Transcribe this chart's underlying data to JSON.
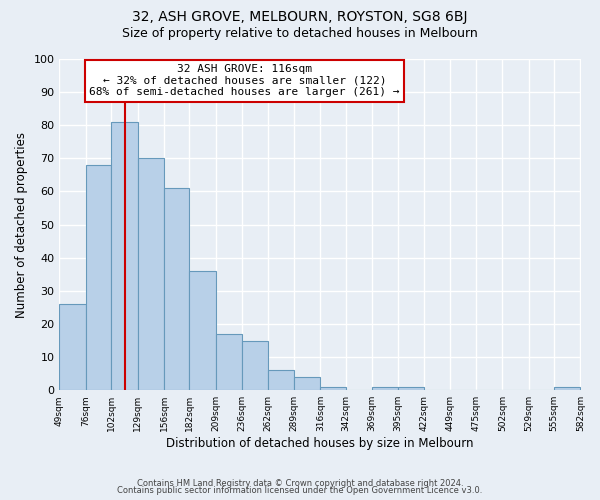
{
  "title": "32, ASH GROVE, MELBOURN, ROYSTON, SG8 6BJ",
  "subtitle": "Size of property relative to detached houses in Melbourn",
  "xlabel": "Distribution of detached houses by size in Melbourn",
  "ylabel": "Number of detached properties",
  "bin_edges": [
    49,
    76,
    102,
    129,
    156,
    182,
    209,
    236,
    262,
    289,
    316,
    342,
    369,
    395,
    422,
    449,
    475,
    502,
    529,
    555,
    582
  ],
  "bin_counts": [
    26,
    68,
    81,
    70,
    61,
    36,
    17,
    15,
    6,
    4,
    1,
    0,
    1,
    1,
    0,
    0,
    0,
    0,
    0,
    1
  ],
  "bar_color": "#b8d0e8",
  "bar_edge_color": "#6699bb",
  "reference_line_x": 116,
  "reference_line_color": "#cc0000",
  "annotation_text": "32 ASH GROVE: 116sqm\n← 32% of detached houses are smaller (122)\n68% of semi-detached houses are larger (261) →",
  "annotation_box_facecolor": "#ffffff",
  "annotation_box_edgecolor": "#cc0000",
  "ylim": [
    0,
    100
  ],
  "background_color": "#e8eef5",
  "plot_bg_color": "#e8eef5",
  "grid_color": "#ffffff",
  "footer_line1": "Contains HM Land Registry data © Crown copyright and database right 2024.",
  "footer_line2": "Contains public sector information licensed under the Open Government Licence v3.0.",
  "tick_labels": [
    "49sqm",
    "76sqm",
    "102sqm",
    "129sqm",
    "156sqm",
    "182sqm",
    "209sqm",
    "236sqm",
    "262sqm",
    "289sqm",
    "316sqm",
    "342sqm",
    "369sqm",
    "395sqm",
    "422sqm",
    "449sqm",
    "475sqm",
    "502sqm",
    "529sqm",
    "555sqm",
    "582sqm"
  ]
}
